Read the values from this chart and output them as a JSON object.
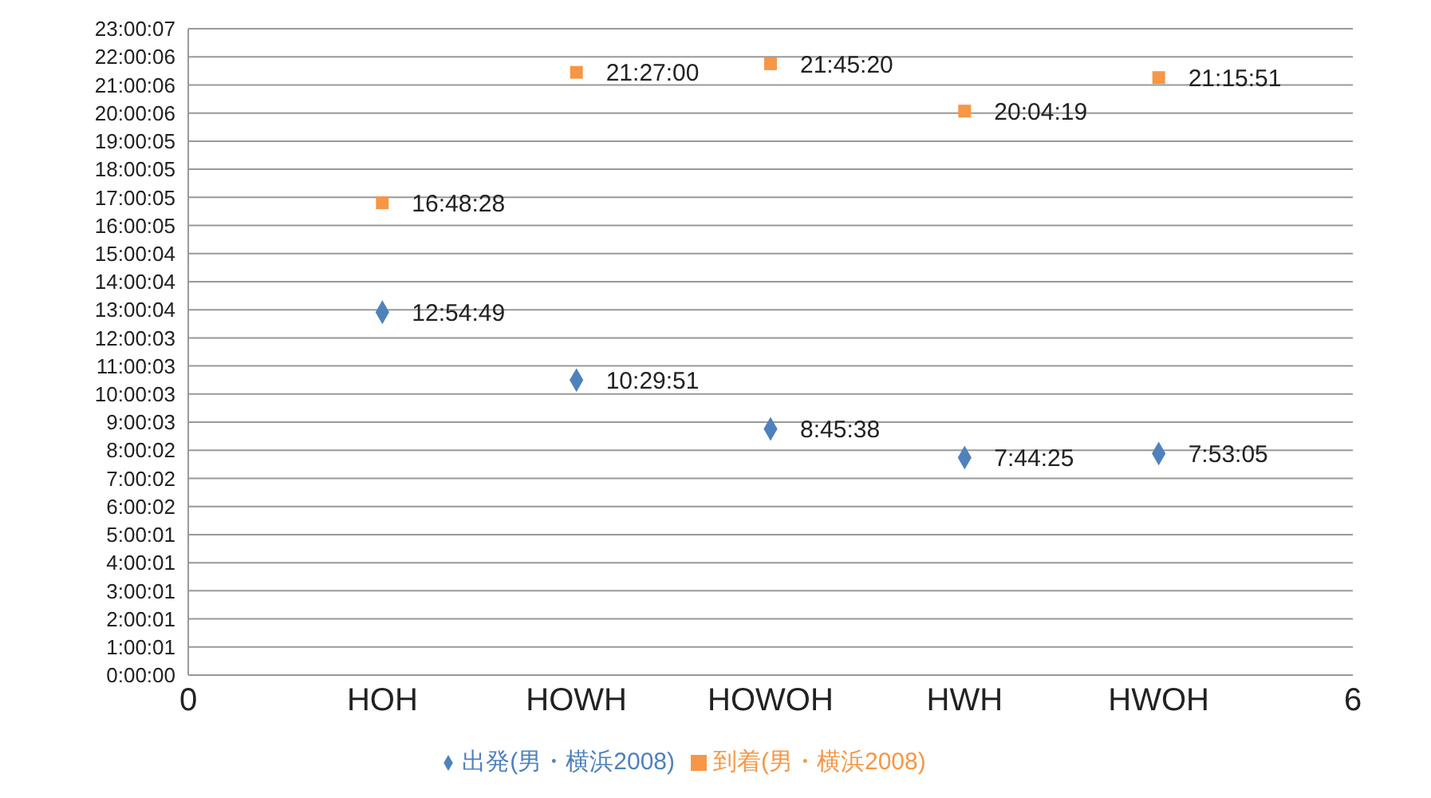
{
  "chart_data": {
    "type": "scatter",
    "categories": [
      "0",
      "HOH",
      "HOWH",
      "HOWOH",
      "HWH",
      "HWOH",
      "6"
    ],
    "ylim": [
      0,
      23.0019
    ],
    "yticks": [
      {
        "value": 0,
        "label": "0:00:00"
      },
      {
        "value": 1.0003,
        "label": "1:00:01"
      },
      {
        "value": 2.0003,
        "label": "2:00:01"
      },
      {
        "value": 3.0003,
        "label": "3:00:01"
      },
      {
        "value": 4.0003,
        "label": "4:00:01"
      },
      {
        "value": 5.0003,
        "label": "5:00:01"
      },
      {
        "value": 6.0006,
        "label": "6:00:02"
      },
      {
        "value": 7.0006,
        "label": "7:00:02"
      },
      {
        "value": 8.0006,
        "label": "8:00:02"
      },
      {
        "value": 9.0008,
        "label": "9:00:03"
      },
      {
        "value": 10.0008,
        "label": "10:00:03"
      },
      {
        "value": 11.0008,
        "label": "11:00:03"
      },
      {
        "value": 12.0008,
        "label": "12:00:03"
      },
      {
        "value": 13.0011,
        "label": "13:00:04"
      },
      {
        "value": 14.0011,
        "label": "14:00:04"
      },
      {
        "value": 15.0011,
        "label": "15:00:04"
      },
      {
        "value": 16.0014,
        "label": "16:00:05"
      },
      {
        "value": 17.0014,
        "label": "17:00:05"
      },
      {
        "value": 18.0014,
        "label": "18:00:05"
      },
      {
        "value": 19.0014,
        "label": "19:00:05"
      },
      {
        "value": 20.0017,
        "label": "20:00:06"
      },
      {
        "value": 21.0017,
        "label": "21:00:06"
      },
      {
        "value": 22.0017,
        "label": "22:00:06"
      },
      {
        "value": 23.0019,
        "label": "23:00:07"
      }
    ],
    "grid": "y",
    "legend": "bottom",
    "series": [
      {
        "name": "出発(男・横浜2008)",
        "color": "#4f81bd",
        "marker": "diamond",
        "values": [
          null,
          12.9136,
          10.4975,
          8.7606,
          7.7403,
          7.8847,
          null
        ],
        "value_labels": [
          null,
          "12:54:49",
          "10:29:51",
          "8:45:38",
          "7:44:25",
          "7:53:05",
          null
        ]
      },
      {
        "name": "到着(男・横浜2008)",
        "color": "#f79646",
        "marker": "square",
        "values": [
          null,
          16.8078,
          21.45,
          21.7556,
          20.0719,
          21.2642,
          null
        ],
        "value_labels": [
          null,
          "16:48:28",
          "21:27:00",
          "21:45:20",
          "20:04:19",
          "21:15:51",
          null
        ]
      }
    ]
  }
}
